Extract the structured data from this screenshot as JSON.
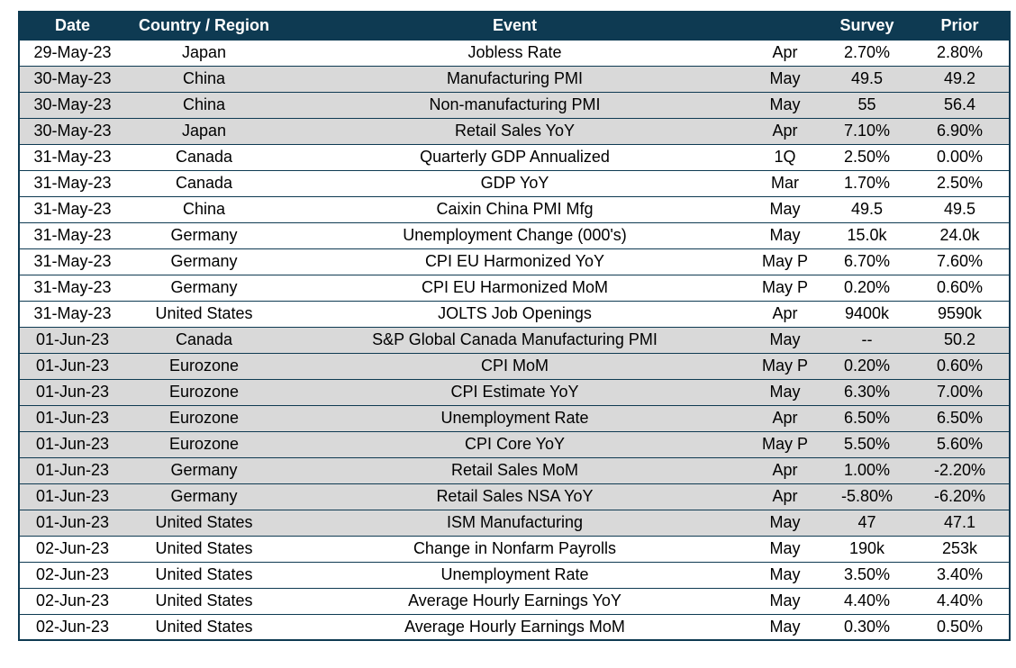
{
  "style": {
    "header_bg": "#0e3a52",
    "header_text_color": "#ffffff",
    "row_shaded_bg": "#d9d9d9",
    "row_plain_bg": "#ffffff",
    "border_color": "#0e3a52",
    "body_text_color": "#000000"
  },
  "chart_data": {
    "type": "table",
    "title": "",
    "columns": {
      "date": "Date",
      "country": "Country / Region",
      "event": "Event",
      "period": "",
      "survey": "Survey",
      "prior": "Prior"
    },
    "rows": [
      {
        "date": "29-May-23",
        "country": "Japan",
        "event": "Jobless Rate",
        "period": "Apr",
        "survey": "2.70%",
        "prior": "2.80%",
        "shaded": false
      },
      {
        "date": "30-May-23",
        "country": "China",
        "event": "Manufacturing PMI",
        "period": "May",
        "survey": "49.5",
        "prior": "49.2",
        "shaded": true
      },
      {
        "date": "30-May-23",
        "country": "China",
        "event": "Non-manufacturing PMI",
        "period": "May",
        "survey": "55",
        "prior": "56.4",
        "shaded": true
      },
      {
        "date": "30-May-23",
        "country": "Japan",
        "event": "Retail Sales YoY",
        "period": "Apr",
        "survey": "7.10%",
        "prior": "6.90%",
        "shaded": true
      },
      {
        "date": "31-May-23",
        "country": "Canada",
        "event": "Quarterly GDP Annualized",
        "period": "1Q",
        "survey": "2.50%",
        "prior": "0.00%",
        "shaded": false
      },
      {
        "date": "31-May-23",
        "country": "Canada",
        "event": "GDP YoY",
        "period": "Mar",
        "survey": "1.70%",
        "prior": "2.50%",
        "shaded": false
      },
      {
        "date": "31-May-23",
        "country": "China",
        "event": "Caixin China PMI Mfg",
        "period": "May",
        "survey": "49.5",
        "prior": "49.5",
        "shaded": false
      },
      {
        "date": "31-May-23",
        "country": "Germany",
        "event": "Unemployment Change (000's)",
        "period": "May",
        "survey": "15.0k",
        "prior": "24.0k",
        "shaded": false
      },
      {
        "date": "31-May-23",
        "country": "Germany",
        "event": "CPI EU Harmonized YoY",
        "period": "May P",
        "survey": "6.70%",
        "prior": "7.60%",
        "shaded": false
      },
      {
        "date": "31-May-23",
        "country": "Germany",
        "event": "CPI EU Harmonized MoM",
        "period": "May P",
        "survey": "0.20%",
        "prior": "0.60%",
        "shaded": false
      },
      {
        "date": "31-May-23",
        "country": "United States",
        "event": "JOLTS Job Openings",
        "period": "Apr",
        "survey": "9400k",
        "prior": "9590k",
        "shaded": false
      },
      {
        "date": "01-Jun-23",
        "country": "Canada",
        "event": "S&P Global Canada Manufacturing PMI",
        "period": "May",
        "survey": "--",
        "prior": "50.2",
        "shaded": true
      },
      {
        "date": "01-Jun-23",
        "country": "Eurozone",
        "event": "CPI MoM",
        "period": "May P",
        "survey": "0.20%",
        "prior": "0.60%",
        "shaded": true
      },
      {
        "date": "01-Jun-23",
        "country": "Eurozone",
        "event": "CPI Estimate YoY",
        "period": "May",
        "survey": "6.30%",
        "prior": "7.00%",
        "shaded": true
      },
      {
        "date": "01-Jun-23",
        "country": "Eurozone",
        "event": "Unemployment Rate",
        "period": "Apr",
        "survey": "6.50%",
        "prior": "6.50%",
        "shaded": true
      },
      {
        "date": "01-Jun-23",
        "country": "Eurozone",
        "event": "CPI Core YoY",
        "period": "May P",
        "survey": "5.50%",
        "prior": "5.60%",
        "shaded": true
      },
      {
        "date": "01-Jun-23",
        "country": "Germany",
        "event": "Retail Sales MoM",
        "period": "Apr",
        "survey": "1.00%",
        "prior": "-2.20%",
        "shaded": true
      },
      {
        "date": "01-Jun-23",
        "country": "Germany",
        "event": "Retail Sales NSA YoY",
        "period": "Apr",
        "survey": "-5.80%",
        "prior": "-6.20%",
        "shaded": true
      },
      {
        "date": "01-Jun-23",
        "country": "United States",
        "event": "ISM Manufacturing",
        "period": "May",
        "survey": "47",
        "prior": "47.1",
        "shaded": true
      },
      {
        "date": "02-Jun-23",
        "country": "United States",
        "event": "Change in Nonfarm Payrolls",
        "period": "May",
        "survey": "190k",
        "prior": "253k",
        "shaded": false
      },
      {
        "date": "02-Jun-23",
        "country": "United States",
        "event": "Unemployment Rate",
        "period": "May",
        "survey": "3.50%",
        "prior": "3.40%",
        "shaded": false
      },
      {
        "date": "02-Jun-23",
        "country": "United States",
        "event": "Average Hourly Earnings YoY",
        "period": "May",
        "survey": "4.40%",
        "prior": "4.40%",
        "shaded": false
      },
      {
        "date": "02-Jun-23",
        "country": "United States",
        "event": "Average Hourly Earnings MoM",
        "period": "May",
        "survey": "0.30%",
        "prior": "0.50%",
        "shaded": false
      }
    ]
  }
}
